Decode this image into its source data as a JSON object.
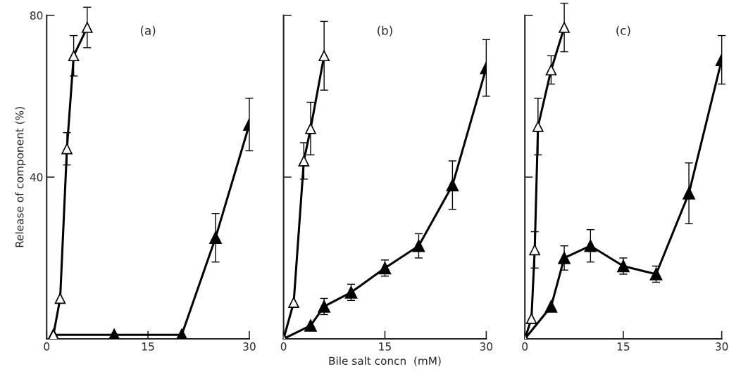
{
  "chart_data": [
    {
      "type": "line",
      "title": "(a)",
      "ylabel": "Release of component (%)",
      "xlim": [
        0,
        30
      ],
      "xticks": [
        0,
        15,
        30
      ],
      "ylim": [
        0,
        80
      ],
      "yticks": [
        {
          "value": 0,
          "label": null
        },
        40,
        80
      ],
      "marker": "triangle",
      "grid": false,
      "legend": false,
      "series": [
        {
          "color": "#ffffff",
          "x": [
            1,
            2,
            3,
            4,
            6
          ],
          "values": [
            1,
            10,
            47,
            70,
            77
          ],
          "errors": [
            null,
            null,
            4,
            5,
            5
          ]
        },
        {
          "color": "#000000",
          "x": [
            1,
            10,
            20,
            25,
            30
          ],
          "values": [
            1,
            1,
            1,
            25,
            53
          ],
          "errors": [
            null,
            null,
            null,
            6,
            6.5
          ]
        }
      ]
    },
    {
      "type": "line",
      "title": "(b)",
      "xlabel": "Bile salt concn  (mM)",
      "xlim": [
        0,
        30
      ],
      "xticks": [
        0,
        15,
        30
      ],
      "ylim": [
        0,
        80
      ],
      "yticks": [
        {
          "value": 0,
          "label": null
        },
        {
          "value": 40,
          "label": null
        },
        {
          "value": 80,
          "label": null
        }
      ],
      "tick_labels": "x",
      "marker": "triangle",
      "grid": false,
      "legend": false,
      "series": [
        {
          "color": "#ffffff",
          "x": [
            0,
            1.5,
            3,
            4,
            6
          ],
          "values": [
            0,
            9,
            44,
            52,
            70
          ],
          "errors": [
            null,
            null,
            4.5,
            6.5,
            8.5
          ]
        },
        {
          "color": "#000000",
          "x": [
            0,
            4,
            6,
            10,
            15,
            20,
            25,
            30
          ],
          "values": [
            0,
            3.3,
            8,
            11.5,
            17.5,
            23,
            38,
            67
          ],
          "errors": [
            null,
            null,
            2,
            2,
            2,
            3,
            6,
            7
          ]
        }
      ]
    },
    {
      "type": "line",
      "title": "(c)",
      "xlim": [
        0,
        30
      ],
      "xticks": [
        0,
        15,
        30
      ],
      "ylim": [
        0,
        80
      ],
      "yticks": [
        {
          "value": 0,
          "label": null
        },
        {
          "value": 40,
          "label": null
        },
        {
          "value": 80,
          "label": null
        }
      ],
      "tick_labels": "x",
      "marker": "triangle",
      "grid": false,
      "legend": false,
      "series": [
        {
          "color": "#ffffff",
          "x": [
            0,
            1,
            1.5,
            2,
            4,
            6
          ],
          "values": [
            0,
            5,
            22,
            52.5,
            66.5,
            77
          ],
          "errors": [
            null,
            null,
            4.5,
            7,
            3.5,
            6
          ]
        },
        {
          "color": "#000000",
          "x": [
            0,
            4,
            6,
            10,
            15,
            20,
            25,
            30
          ],
          "values": [
            0,
            8,
            20,
            23,
            18,
            16,
            36,
            69
          ],
          "errors": [
            null,
            null,
            3,
            4,
            2,
            2,
            7.5,
            6
          ]
        }
      ]
    }
  ]
}
